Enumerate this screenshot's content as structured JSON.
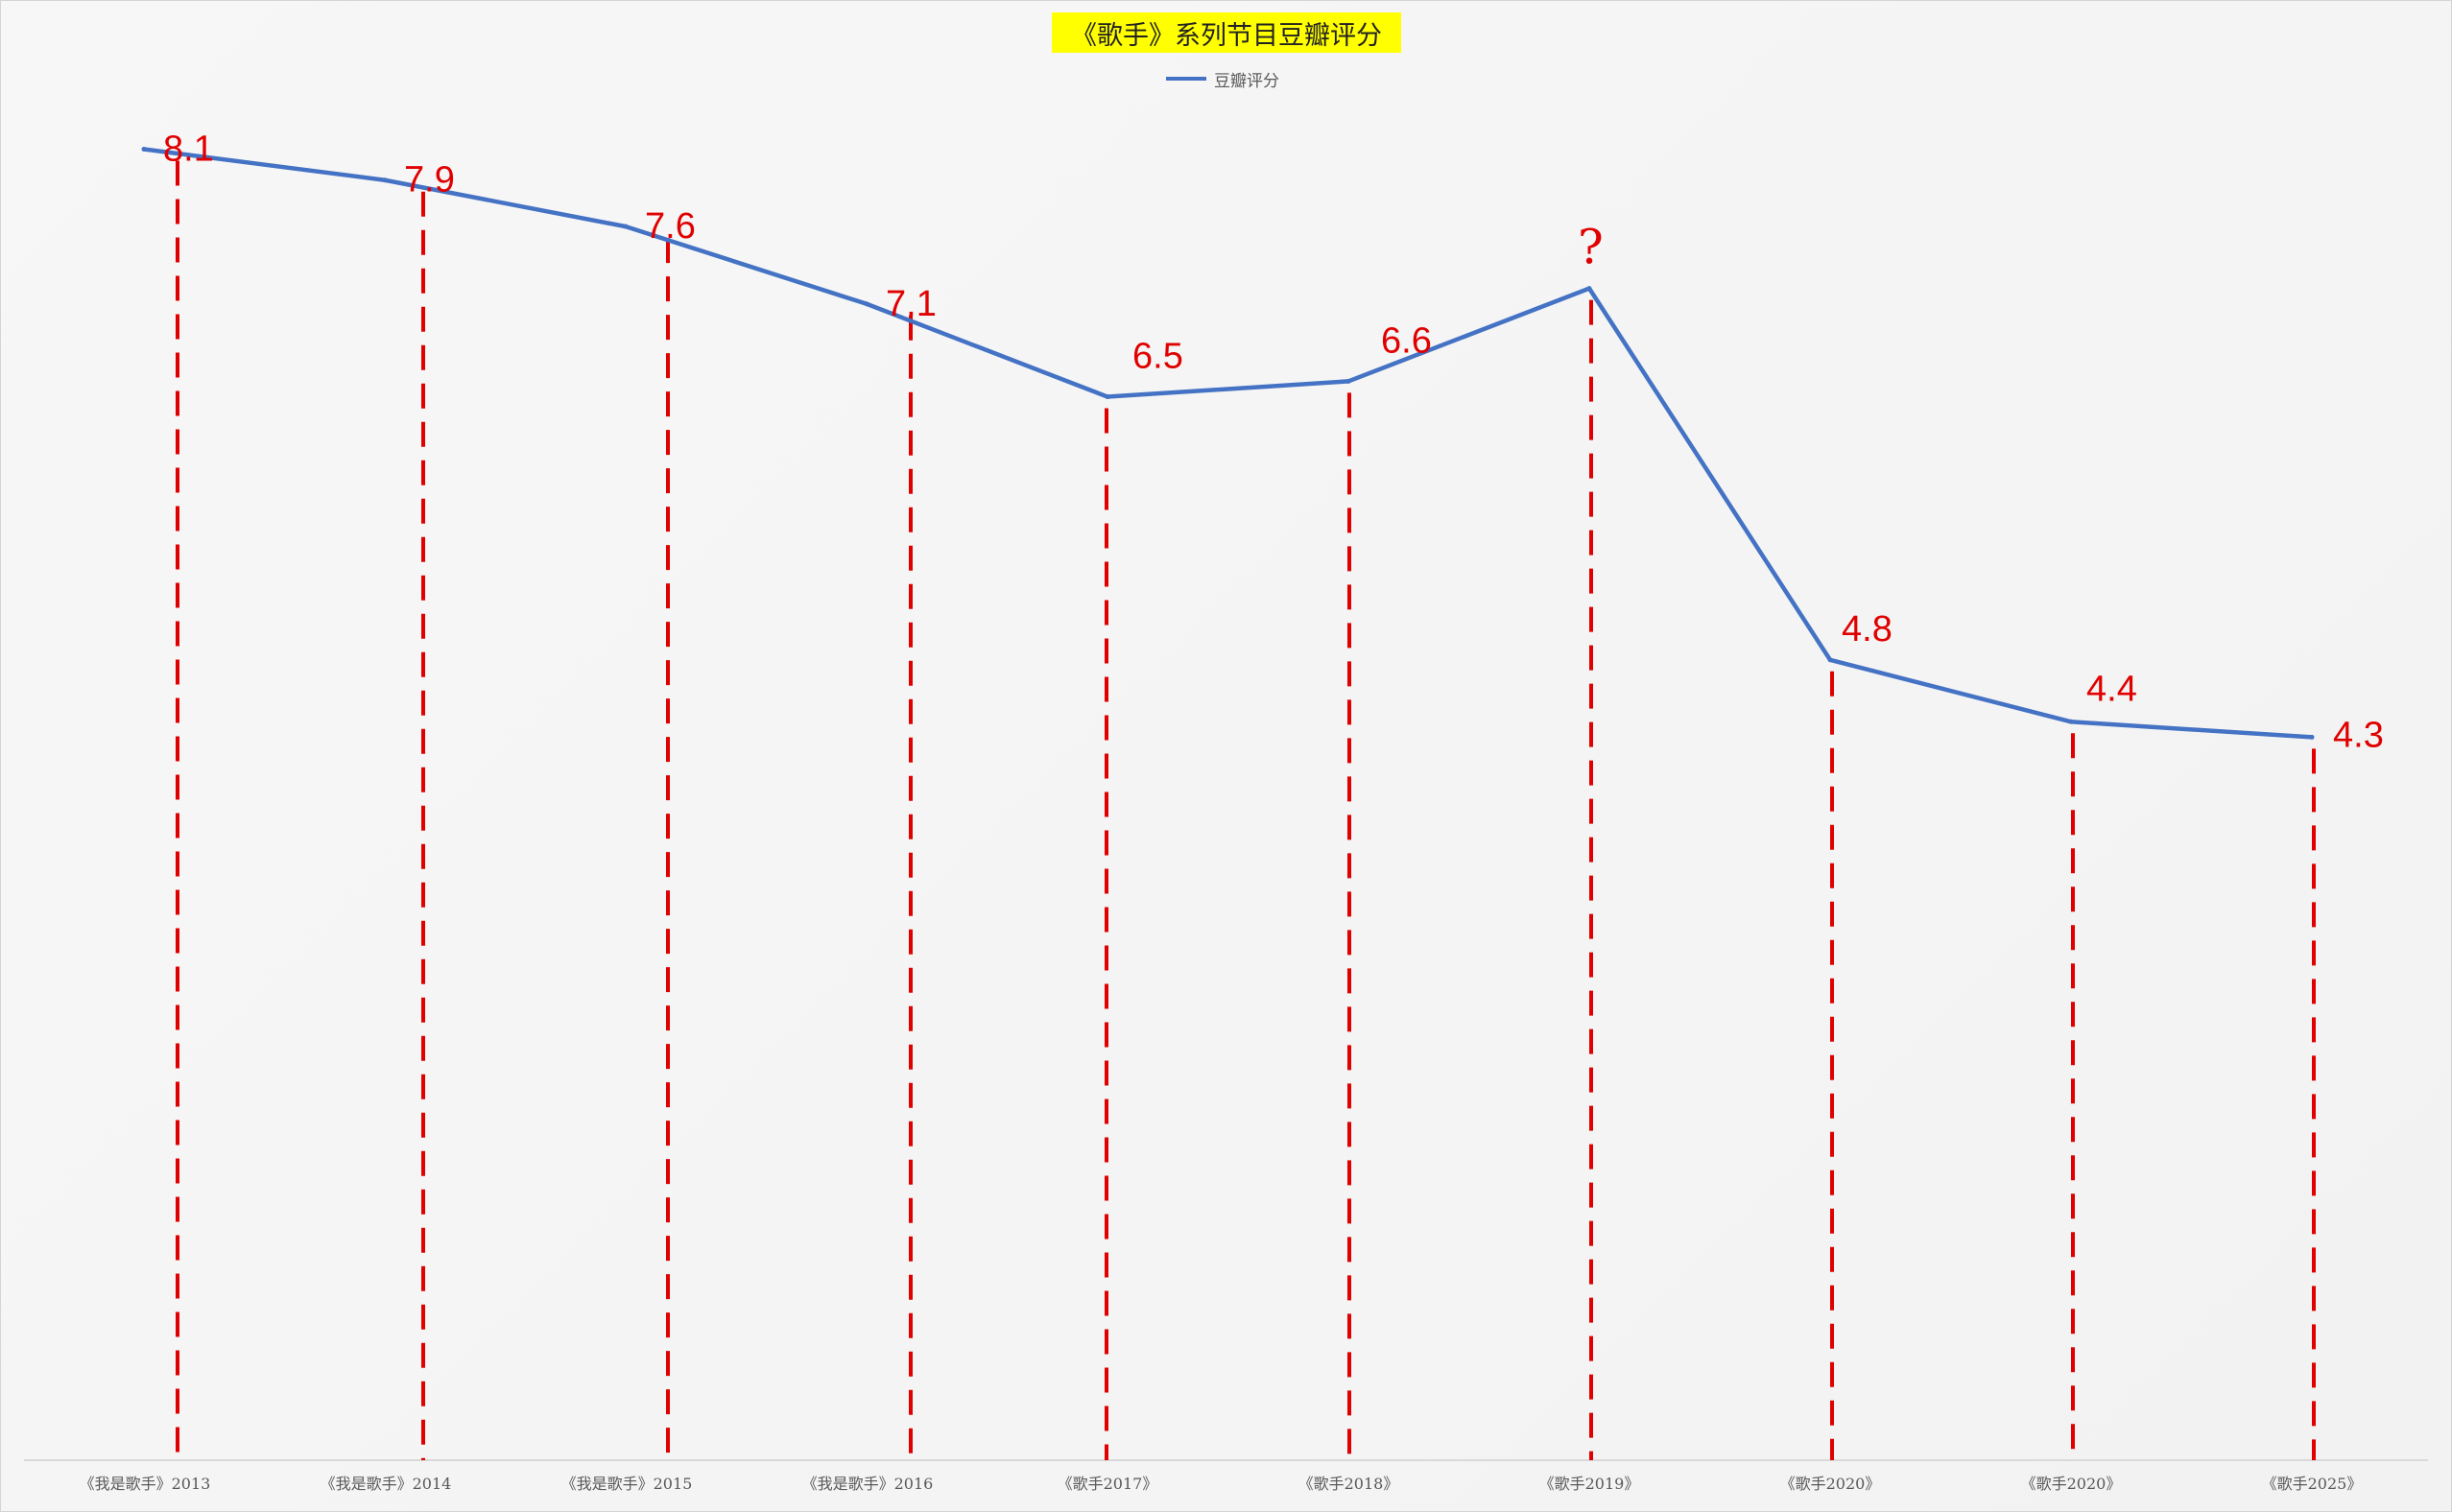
{
  "chart_data": {
    "type": "line",
    "title": "《歌手》系列节目豆瓣评分",
    "xlabel": "",
    "ylabel": "",
    "legend_position": "top",
    "grid": false,
    "categories": [
      "《我是歌手》2013",
      "《我是歌手》2014",
      "《我是歌手》2015",
      "《我是歌手》2016",
      "《歌手2017》",
      "《歌手2018》",
      "《歌手2019》",
      "《歌手2020》",
      "《歌手2020》",
      "《歌手2025》"
    ],
    "series": [
      {
        "name": "豆瓣评分",
        "color": "#4472c4",
        "values": [
          8.1,
          7.9,
          7.6,
          7.1,
          6.5,
          6.6,
          7.2,
          4.8,
          4.4,
          4.3
        ]
      }
    ],
    "data_labels": [
      "8.1",
      "7.9",
      "7.6",
      "7.1",
      "6.5",
      "6.6",
      "?",
      "4.8",
      "4.4",
      "4.3"
    ],
    "annotation_color": "#e00000"
  }
}
